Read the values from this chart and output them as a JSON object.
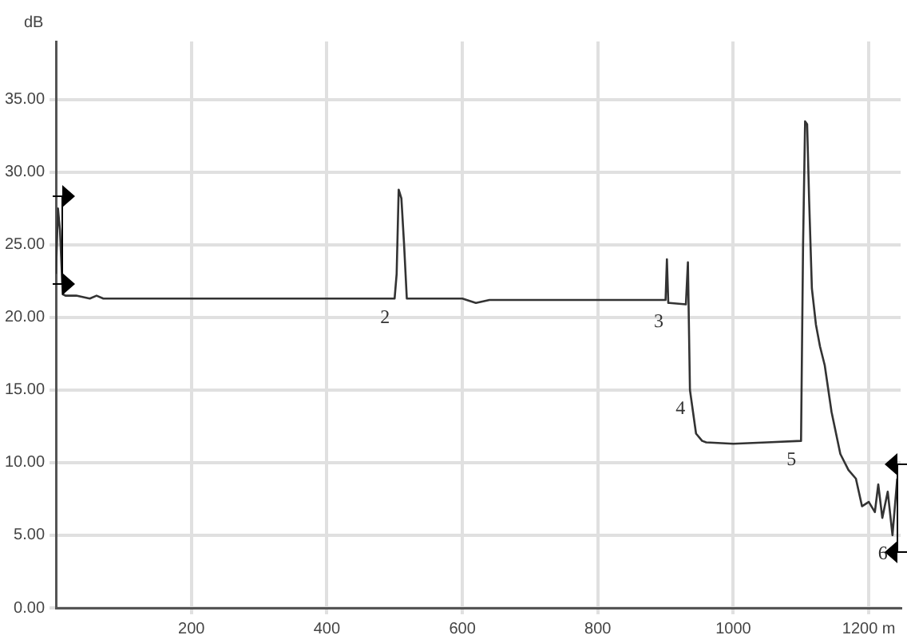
{
  "chart_data": {
    "type": "line",
    "ylabel": "dB",
    "x": [
      0,
      3,
      6,
      10,
      14,
      30,
      50,
      60,
      70,
      80,
      100,
      500,
      503,
      506,
      510,
      514,
      518,
      521,
      600,
      620,
      640,
      900,
      902,
      904,
      906,
      930,
      933,
      936,
      945,
      954,
      960,
      1000,
      1050,
      1100,
      1103,
      1106,
      1109,
      1112,
      1116,
      1122,
      1128,
      1135,
      1145,
      1158,
      1170,
      1181,
      1190,
      1200,
      1209,
      1214,
      1220,
      1228,
      1235,
      1242
    ],
    "series": [
      {
        "color": "#333333",
        "values": [
          23.0,
          27.5,
          26.0,
          21.6,
          21.5,
          21.5,
          21.3,
          21.5,
          21.3,
          21.3,
          21.3,
          21.3,
          23.0,
          28.8,
          28.2,
          25.0,
          21.3,
          21.3,
          21.3,
          21.0,
          21.2,
          21.2,
          24.0,
          21.0,
          21.0,
          20.9,
          23.8,
          15.0,
          12.0,
          11.5,
          11.4,
          11.3,
          11.4,
          11.5,
          25.0,
          33.5,
          33.3,
          28.0,
          22.0,
          19.5,
          18.0,
          16.7,
          13.5,
          10.6,
          9.5,
          8.9,
          7.0,
          7.3,
          6.6,
          8.5,
          6.2,
          8.0,
          5.0,
          8.9
        ]
      }
    ],
    "xlim": [
      0,
      1247
    ],
    "xticks": [
      200,
      400,
      600,
      800,
      1000,
      {
        "value": 1200,
        "label": "1200 m"
      }
    ],
    "ylim": [
      0,
      39
    ],
    "yticks": [
      {
        "value": 0,
        "label": "0.00"
      },
      {
        "value": 5,
        "label": "5.00"
      },
      {
        "value": 10,
        "label": "10.00"
      },
      {
        "value": 15,
        "label": "15.00"
      },
      {
        "value": 20,
        "label": "20.00"
      },
      {
        "value": 25,
        "label": "25.00"
      },
      {
        "value": 30,
        "label": "30.00"
      },
      {
        "value": 35,
        "label": "35.00"
      }
    ],
    "grid": true,
    "legend": false,
    "marker": "none",
    "line_style": "solid",
    "annotations": [
      {
        "text": "2",
        "x": 500,
        "y": 21.3
      },
      {
        "text": "3",
        "x": 904,
        "y": 21.0
      },
      {
        "text": "4",
        "x": 936,
        "y": 15.0
      },
      {
        "text": "5",
        "x": 1100,
        "y": 11.5
      },
      {
        "text": "6",
        "x": 1235,
        "y": 5.0
      }
    ]
  }
}
